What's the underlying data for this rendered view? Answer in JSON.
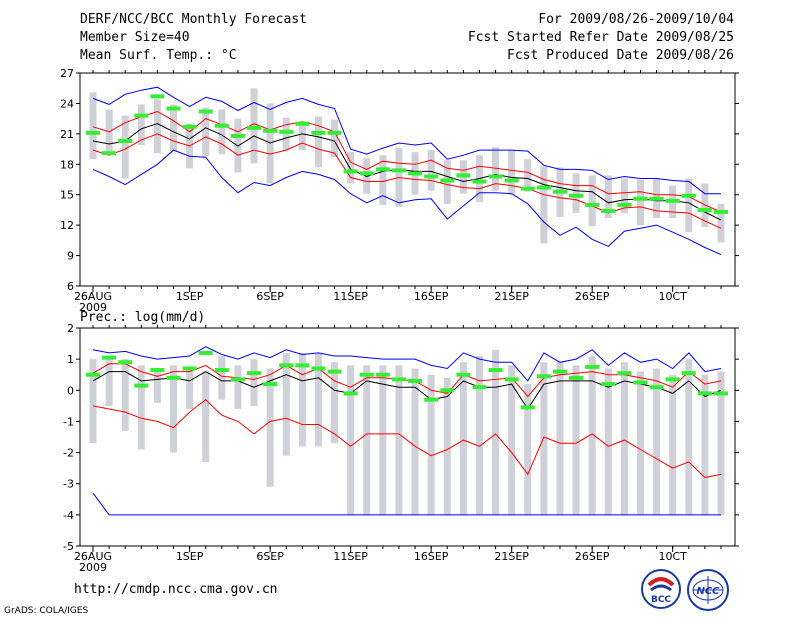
{
  "header": {
    "title": "DERF/NCC/BCC Monthly Forecast",
    "member_size": "Member Size=40",
    "variable": "Mean Surf. Temp.: °C",
    "period": "For 2009/08/26-2009/10/04",
    "refer_date": "Fcst Started Refer Date 2009/08/25",
    "produced_date": "Fcst Produced Date 2009/08/26"
  },
  "footer": {
    "url": "http://cmdp.ncc.cma.gov.cn",
    "grads": "GrADS: COLA/IGES",
    "logo_left": "BCC",
    "logo_right": "NCC"
  },
  "colors": {
    "max_line": "#0000ff",
    "min_line": "#0000ff",
    "upper_line": "#ff0000",
    "lower_line": "#ff0000",
    "mean_line": "#000000",
    "box": "#d0d0d8",
    "marker": "#33ee33"
  },
  "chart_data": [
    {
      "type": "box-line",
      "title": "Mean Surf. Temp.: °C",
      "ylim": [
        6,
        27
      ],
      "yticks": [
        6,
        9,
        12,
        15,
        18,
        21,
        24,
        27
      ],
      "x_start_day": 0,
      "x_end_day": 39,
      "xtick_labels": [
        {
          "day": 0,
          "label": "26AUG",
          "sub": "2009"
        },
        {
          "day": 6,
          "label": "1SEP"
        },
        {
          "day": 11,
          "label": "6SEP"
        },
        {
          "day": 16,
          "label": "11SEP"
        },
        {
          "day": 21,
          "label": "16SEP"
        },
        {
          "day": 26,
          "label": "21SEP"
        },
        {
          "day": 31,
          "label": "26SEP"
        },
        {
          "day": 36,
          "label": "10CT"
        }
      ],
      "max": [
        24.5,
        23.9,
        24.9,
        25.3,
        25.6,
        24.6,
        23.7,
        24.6,
        24.2,
        23.3,
        24.1,
        23.4,
        24.1,
        24.5,
        23.9,
        23.5,
        19.5,
        19.0,
        19.6,
        20.1,
        19.9,
        20.1,
        18.5,
        18.9,
        19.4,
        19.4,
        19.4,
        19.3,
        17.9,
        17.5,
        17.5,
        17.4,
        16.5,
        16.8,
        16.6,
        16.6,
        16.4,
        16.3,
        15.1,
        15.1
      ],
      "upper": [
        21.7,
        21.2,
        22.1,
        22.7,
        23.2,
        22.3,
        21.2,
        22.5,
        21.9,
        21.2,
        22.0,
        21.4,
        21.9,
        22.2,
        21.8,
        21.2,
        18.2,
        17.5,
        18.3,
        18.1,
        18.0,
        18.4,
        17.6,
        17.4,
        17.8,
        17.6,
        17.4,
        17.2,
        16.5,
        16.1,
        15.9,
        15.9,
        15.1,
        15.2,
        15.3,
        15.0,
        15.0,
        14.8,
        14.0,
        13.3
      ],
      "mean": [
        20.3,
        20.0,
        20.3,
        21.5,
        22.0,
        21.2,
        20.5,
        21.6,
        20.9,
        19.8,
        20.8,
        20.1,
        20.6,
        21.0,
        20.7,
        20.3,
        17.5,
        16.8,
        17.3,
        17.5,
        17.3,
        17.3,
        16.8,
        16.3,
        16.6,
        17.0,
        16.7,
        16.6,
        16.0,
        15.7,
        15.4,
        15.3,
        14.2,
        14.5,
        14.6,
        14.4,
        14.4,
        14.2,
        13.3,
        12.5
      ],
      "lower": [
        19.4,
        18.9,
        19.5,
        20.4,
        21.0,
        20.3,
        19.8,
        20.7,
        20.0,
        18.9,
        19.4,
        19.0,
        19.4,
        20.1,
        19.5,
        19.1,
        16.7,
        16.3,
        16.3,
        16.7,
        16.5,
        16.4,
        16.0,
        15.7,
        15.6,
        16.1,
        15.9,
        15.6,
        15.0,
        14.7,
        14.5,
        13.9,
        13.2,
        13.7,
        13.8,
        13.4,
        13.3,
        13.2,
        12.4,
        11.7
      ],
      "min": [
        17.5,
        16.8,
        16.0,
        17.0,
        18.0,
        19.4,
        18.8,
        18.7,
        16.7,
        15.2,
        16.2,
        15.9,
        16.7,
        17.3,
        17.0,
        16.5,
        15.1,
        14.2,
        14.9,
        14.2,
        14.5,
        14.6,
        12.6,
        13.9,
        15.2,
        15.2,
        15.1,
        14.1,
        12.3,
        11.0,
        11.8,
        10.6,
        9.9,
        11.4,
        11.7,
        12.0,
        11.3,
        10.6,
        9.8,
        9.1
      ],
      "box_hi": [
        25.1,
        23.4,
        22.8,
        23.9,
        24.4,
        23.9,
        22.0,
        23.6,
        23.4,
        22.5,
        25.5,
        24.0,
        22.6,
        22.0,
        22.7,
        22.4,
        19.2,
        18.6,
        18.9,
        19.6,
        19.2,
        19.4,
        18.4,
        18.4,
        18.9,
        19.7,
        19.4,
        18.5,
        17.8,
        17.7,
        17.1,
        16.9,
        16.9,
        16.6,
        16.5,
        16.6,
        15.9,
        16.6,
        16.1,
        14.1
      ],
      "box_lo": [
        18.5,
        19.3,
        16.6,
        19.9,
        19.1,
        19.3,
        17.6,
        18.8,
        19.0,
        17.2,
        18.1,
        16.1,
        19.4,
        19.4,
        17.7,
        18.7,
        16.1,
        15.1,
        14.0,
        13.8,
        15.0,
        15.4,
        14.1,
        15.1,
        14.3,
        15.4,
        15.0,
        15.3,
        10.2,
        12.8,
        13.2,
        11.9,
        12.7,
        13.2,
        12.0,
        12.7,
        12.7,
        11.3,
        11.8,
        10.3
      ],
      "marker": [
        21.1,
        19.1,
        20.3,
        22.8,
        24.7,
        23.5,
        21.7,
        23.2,
        21.8,
        20.8,
        21.6,
        21.3,
        21.2,
        22.0,
        21.1,
        21.1,
        17.3,
        17.1,
        17.5,
        17.4,
        17.1,
        16.8,
        16.4,
        16.9,
        16.3,
        16.8,
        16.4,
        15.6,
        15.7,
        15.3,
        14.9,
        14.0,
        13.4,
        14.0,
        14.6,
        14.6,
        14.4,
        14.9,
        13.5,
        13.3
      ]
    },
    {
      "type": "box-line",
      "title": "Prec.: log(mm/d)",
      "ylim": [
        -5,
        2
      ],
      "yticks": [
        -5,
        -4,
        -3,
        -2,
        -1,
        0,
        1,
        2
      ],
      "x_start_day": 0,
      "x_end_day": 39,
      "xtick_labels": [
        {
          "day": 0,
          "label": "26AUG",
          "sub": "2009"
        },
        {
          "day": 6,
          "label": "1SEP"
        },
        {
          "day": 11,
          "label": "6SEP"
        },
        {
          "day": 16,
          "label": "11SEP"
        },
        {
          "day": 21,
          "label": "16SEP"
        },
        {
          "day": 26,
          "label": "21SEP"
        },
        {
          "day": 31,
          "label": "26SEP"
        },
        {
          "day": 36,
          "label": "10CT"
        }
      ],
      "max": [
        1.3,
        1.2,
        1.25,
        1.1,
        1.0,
        1.05,
        1.1,
        1.4,
        1.15,
        1.0,
        1.2,
        1.05,
        1.3,
        1.15,
        1.2,
        1.1,
        1.1,
        1.05,
        1.0,
        1.0,
        1.0,
        0.8,
        0.7,
        1.2,
        1.0,
        0.9,
        0.9,
        0.3,
        1.2,
        0.9,
        1.0,
        1.3,
        0.8,
        1.2,
        0.9,
        1.0,
        0.7,
        1.2,
        0.6,
        0.7
      ],
      "upper": [
        0.55,
        0.85,
        0.85,
        0.6,
        0.45,
        0.6,
        0.6,
        0.8,
        0.45,
        0.4,
        0.35,
        0.5,
        0.8,
        0.5,
        0.7,
        0.3,
        0.1,
        0.4,
        0.4,
        0.35,
        0.3,
        0.0,
        -0.1,
        0.5,
        0.3,
        0.35,
        0.4,
        -0.2,
        0.4,
        0.5,
        0.55,
        0.6,
        0.5,
        0.5,
        0.4,
        0.3,
        0.1,
        0.6,
        0.2,
        0.3
      ],
      "mean": [
        0.3,
        0.6,
        0.6,
        0.3,
        0.35,
        0.4,
        0.3,
        0.6,
        0.3,
        0.3,
        0.1,
        0.3,
        0.5,
        0.3,
        0.4,
        0.0,
        -0.1,
        0.3,
        0.2,
        0.1,
        0.1,
        -0.3,
        -0.2,
        0.3,
        0.1,
        0.1,
        0.2,
        -0.6,
        0.2,
        0.3,
        0.3,
        0.3,
        0.1,
        0.3,
        0.2,
        0.1,
        -0.1,
        0.3,
        -0.2,
        0.0
      ],
      "lower": [
        -0.5,
        -0.6,
        -0.7,
        -0.9,
        -1.0,
        -1.2,
        -0.7,
        -0.3,
        -0.8,
        -1.0,
        -1.4,
        -1.0,
        -0.9,
        -1.1,
        -1.1,
        -1.4,
        -1.8,
        -1.4,
        -1.4,
        -1.4,
        -1.8,
        -2.1,
        -1.9,
        -1.6,
        -1.8,
        -1.4,
        -2.0,
        -2.7,
        -1.5,
        -1.7,
        -1.7,
        -1.4,
        -1.8,
        -1.6,
        -1.9,
        -2.2,
        -2.5,
        -2.3,
        -2.8,
        -2.7
      ],
      "min": [
        -3.3,
        -4,
        -4,
        -4,
        -4,
        -4,
        -4,
        -4,
        -4,
        -4,
        -4,
        -4,
        -4,
        -4,
        -4,
        -4,
        -4,
        -4,
        -4,
        -4,
        -4,
        -4,
        -4,
        -4,
        -4,
        -4,
        -4,
        -4,
        -4,
        -4,
        -4,
        -4,
        -4,
        -4,
        -4,
        -4,
        -4,
        -4,
        -4,
        -4
      ],
      "box_hi": [
        1.0,
        1.1,
        1.0,
        0.8,
        0.7,
        0.8,
        0.7,
        0.6,
        1.1,
        0.8,
        1.0,
        0.7,
        1.2,
        1.2,
        1.2,
        0.9,
        0.8,
        0.8,
        0.8,
        0.8,
        0.7,
        0.5,
        0.4,
        0.9,
        1.1,
        1.3,
        0.8,
        0.2,
        0.9,
        0.9,
        0.8,
        1.1,
        0.7,
        0.9,
        0.6,
        0.7,
        0.5,
        1.0,
        0.5,
        0.6
      ],
      "box_lo": [
        -1.7,
        -0.5,
        -1.3,
        -1.9,
        -0.4,
        -2.0,
        -0.6,
        -2.3,
        -0.3,
        -0.6,
        -0.5,
        -3.1,
        -2.1,
        -1.8,
        -1.8,
        -1.7,
        -4.0,
        -4.0,
        -4.0,
        -4.0,
        -4.0,
        -4.0,
        -4.0,
        -4.0,
        -4.0,
        -4.0,
        -4.0,
        -4.0,
        -4.0,
        -4.0,
        -4.0,
        -4.0,
        -4.0,
        -4.0,
        -4.0,
        -4.0,
        -4.0,
        -4.0,
        -4.0,
        -4.0
      ],
      "marker": [
        0.5,
        1.05,
        0.9,
        0.15,
        0.65,
        0.4,
        0.7,
        1.2,
        0.65,
        0.35,
        0.55,
        0.2,
        0.8,
        0.8,
        0.7,
        0.6,
        -0.1,
        0.5,
        0.5,
        0.35,
        0.3,
        -0.3,
        0.0,
        0.5,
        0.1,
        0.65,
        0.35,
        -0.55,
        0.45,
        0.6,
        0.4,
        0.75,
        0.2,
        0.55,
        0.25,
        0.1,
        0.35,
        0.55,
        -0.1,
        -0.1
      ]
    }
  ]
}
